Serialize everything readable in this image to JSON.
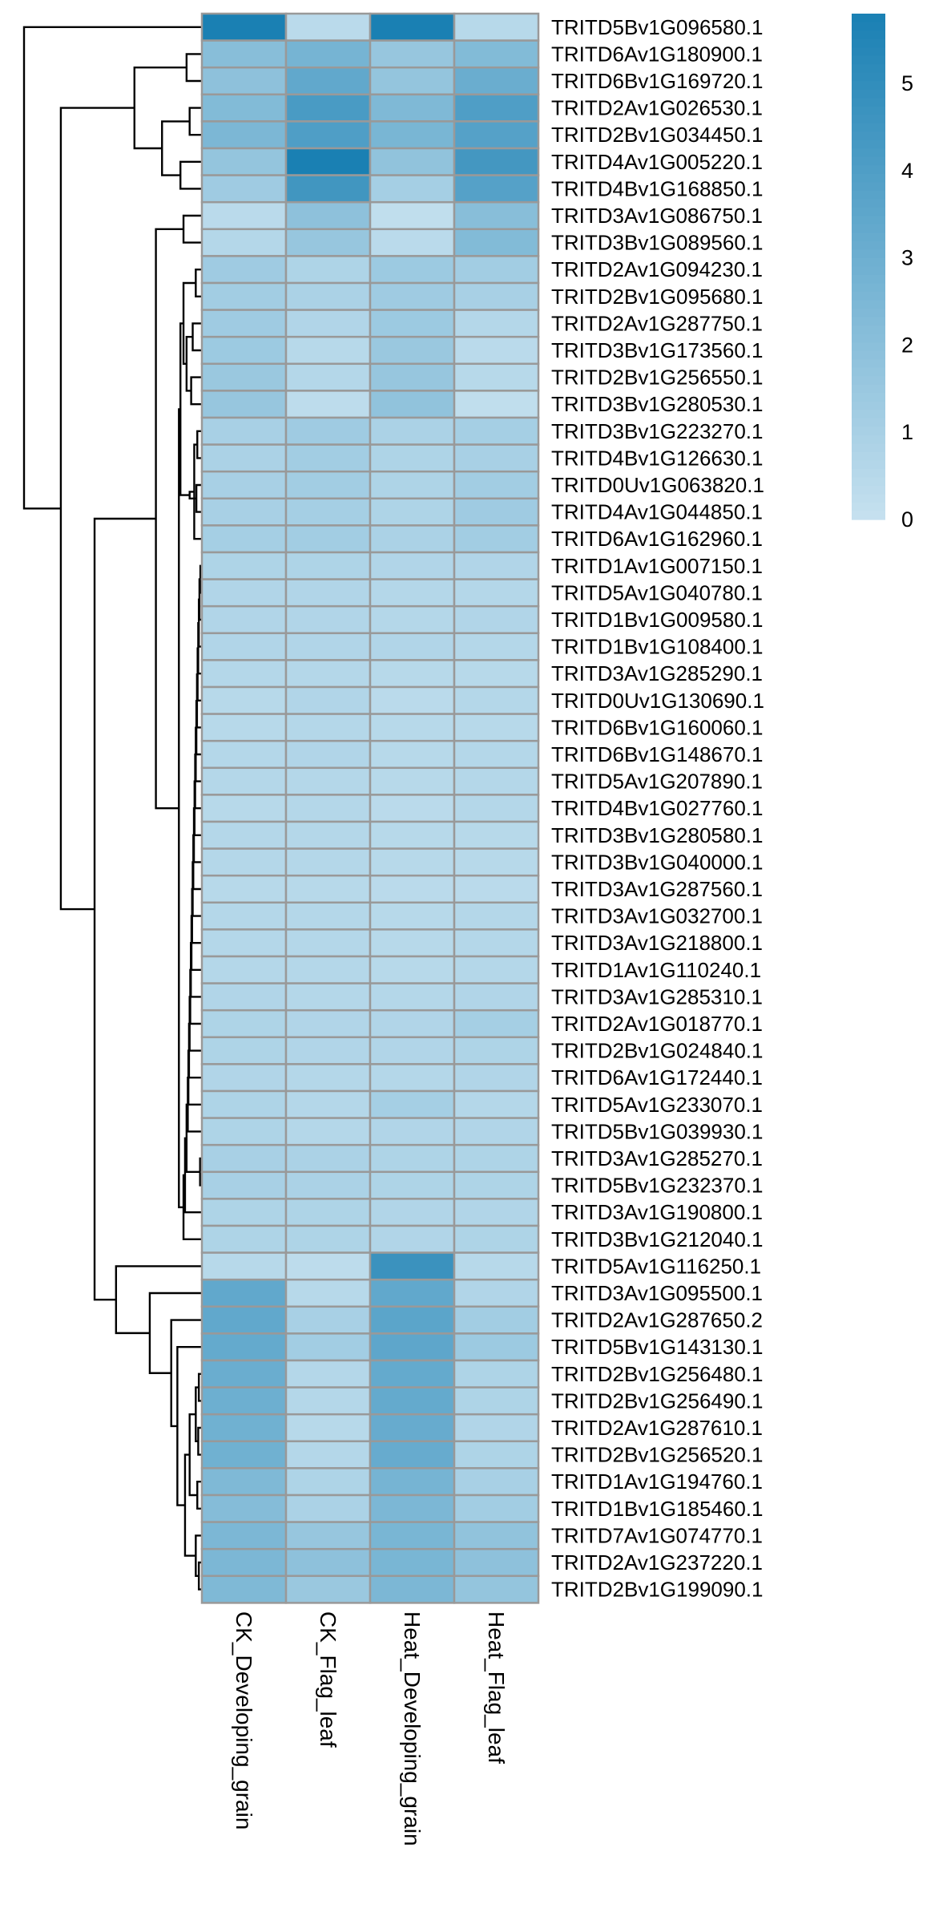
{
  "chart_data": {
    "type": "heatmap",
    "title": "",
    "xlabel": "",
    "ylabel": "",
    "columns": [
      "CK_Developing_grain",
      "CK_Flag_leaf",
      "Heat_Developing_grain",
      "Heat_Flag_leaf"
    ],
    "rows": [
      "TRITD5Bv1G096580.1",
      "TRITD6Av1G180900.1",
      "TRITD6Bv1G169720.1",
      "TRITD2Av1G026530.1",
      "TRITD2Bv1G034450.1",
      "TRITD4Av1G005220.1",
      "TRITD4Bv1G168850.1",
      "TRITD3Av1G086750.1",
      "TRITD3Bv1G089560.1",
      "TRITD2Av1G094230.1",
      "TRITD2Bv1G095680.1",
      "TRITD2Av1G287750.1",
      "TRITD3Bv1G173560.1",
      "TRITD2Bv1G256550.1",
      "TRITD3Bv1G280530.1",
      "TRITD3Bv1G223270.1",
      "TRITD4Bv1G126630.1",
      "TRITD0Uv1G063820.1",
      "TRITD4Av1G044850.1",
      "TRITD6Av1G162960.1",
      "TRITD1Av1G007150.1",
      "TRITD5Av1G040780.1",
      "TRITD1Bv1G009580.1",
      "TRITD1Bv1G108400.1",
      "TRITD3Av1G285290.1",
      "TRITD0Uv1G130690.1",
      "TRITD6Bv1G160060.1",
      "TRITD6Bv1G148670.1",
      "TRITD5Av1G207890.1",
      "TRITD4Bv1G027760.1",
      "TRITD3Bv1G280580.1",
      "TRITD3Bv1G040000.1",
      "TRITD3Av1G287560.1",
      "TRITD3Av1G032700.1",
      "TRITD3Av1G218800.1",
      "TRITD1Av1G110240.1",
      "TRITD3Av1G285310.1",
      "TRITD2Av1G018770.1",
      "TRITD2Bv1G024840.1",
      "TRITD6Av1G172440.1",
      "TRITD5Av1G233070.1",
      "TRITD5Bv1G039930.1",
      "TRITD3Av1G285270.1",
      "TRITD5Bv1G232370.1",
      "TRITD3Av1G190800.1",
      "TRITD3Bv1G212040.1",
      "TRITD5Av1G116250.1",
      "TRITD3Av1G095500.1",
      "TRITD2Av1G287650.2",
      "TRITD5Bv1G143130.1",
      "TRITD2Bv1G256480.1",
      "TRITD2Bv1G256490.1",
      "TRITD2Av1G287610.1",
      "TRITD2Bv1G256520.1",
      "TRITD1Av1G194760.1",
      "TRITD1Bv1G185460.1",
      "TRITD7Av1G074770.1",
      "TRITD2Av1G237220.1",
      "TRITD2Bv1G199090.1"
    ],
    "values": [
      [
        5.8,
        0.4,
        5.8,
        0.5
      ],
      [
        2.1,
        2.7,
        1.6,
        2.3
      ],
      [
        1.9,
        3.4,
        1.7,
        3.1
      ],
      [
        2.3,
        4.2,
        2.4,
        4.0
      ],
      [
        2.5,
        4.0,
        2.6,
        3.8
      ],
      [
        1.7,
        5.8,
        1.8,
        4.4
      ],
      [
        1.3,
        4.5,
        1.1,
        3.8
      ],
      [
        0.4,
        1.9,
        0.2,
        2.1
      ],
      [
        0.6,
        1.6,
        0.4,
        2.3
      ],
      [
        1.3,
        0.8,
        1.4,
        1.2
      ],
      [
        1.2,
        0.9,
        1.3,
        1.0
      ],
      [
        1.3,
        0.7,
        1.4,
        0.6
      ],
      [
        1.4,
        0.5,
        1.5,
        0.4
      ],
      [
        1.5,
        0.6,
        1.6,
        0.5
      ],
      [
        1.6,
        0.3,
        1.8,
        0.2
      ],
      [
        1.0,
        1.3,
        0.9,
        1.1
      ],
      [
        0.9,
        1.2,
        0.8,
        1.0
      ],
      [
        1.0,
        1.2,
        0.8,
        1.2
      ],
      [
        1.0,
        1.1,
        0.8,
        1.3
      ],
      [
        1.1,
        1.2,
        0.9,
        1.2
      ],
      [
        0.8,
        0.8,
        0.7,
        0.7
      ],
      [
        0.7,
        0.7,
        0.6,
        0.6
      ],
      [
        0.7,
        0.7,
        0.6,
        0.7
      ],
      [
        0.7,
        0.7,
        0.7,
        0.6
      ],
      [
        0.6,
        0.6,
        0.5,
        0.5
      ],
      [
        0.5,
        0.7,
        0.4,
        0.6
      ],
      [
        0.5,
        0.6,
        0.5,
        0.5
      ],
      [
        0.6,
        0.7,
        0.5,
        0.6
      ],
      [
        0.6,
        0.6,
        0.5,
        0.6
      ],
      [
        0.5,
        0.6,
        0.4,
        0.6
      ],
      [
        0.6,
        0.6,
        0.5,
        0.5
      ],
      [
        0.6,
        0.6,
        0.5,
        0.5
      ],
      [
        0.5,
        0.5,
        0.4,
        0.4
      ],
      [
        0.6,
        0.6,
        0.5,
        0.6
      ],
      [
        0.6,
        0.6,
        0.5,
        0.6
      ],
      [
        0.6,
        0.6,
        0.5,
        0.6
      ],
      [
        0.7,
        0.6,
        0.6,
        0.7
      ],
      [
        0.8,
        0.7,
        0.7,
        1.1
      ],
      [
        0.8,
        0.7,
        0.7,
        0.8
      ],
      [
        0.7,
        0.6,
        0.6,
        0.7
      ],
      [
        0.8,
        0.6,
        1.1,
        0.6
      ],
      [
        0.8,
        0.6,
        0.7,
        0.7
      ],
      [
        1.0,
        0.9,
        0.8,
        0.8
      ],
      [
        1.0,
        0.9,
        0.8,
        0.8
      ],
      [
        0.8,
        0.8,
        0.7,
        0.7
      ],
      [
        0.8,
        0.8,
        0.7,
        0.8
      ],
      [
        0.5,
        0.3,
        4.7,
        0.5
      ],
      [
        3.4,
        0.5,
        3.4,
        0.7
      ],
      [
        3.4,
        1.0,
        3.6,
        1.2
      ],
      [
        3.3,
        1.2,
        3.5,
        1.4
      ],
      [
        3.1,
        0.6,
        3.3,
        0.8
      ],
      [
        3.0,
        0.6,
        3.3,
        0.8
      ],
      [
        2.9,
        0.5,
        3.2,
        0.7
      ],
      [
        2.9,
        0.6,
        3.2,
        0.8
      ],
      [
        2.4,
        0.8,
        2.7,
        1.0
      ],
      [
        2.2,
        0.9,
        2.5,
        1.2
      ],
      [
        2.5,
        1.6,
        2.6,
        1.8
      ],
      [
        2.5,
        1.9,
        2.6,
        1.9
      ],
      [
        2.4,
        1.5,
        2.5,
        1.7
      ]
    ],
    "color_scale": {
      "min": 0,
      "max": 5.8,
      "low_color": "#c6e1ef",
      "high_color": "#1a80b3"
    },
    "legend_ticks": [
      0,
      1,
      2,
      3,
      4,
      5
    ],
    "cell_border_color": "#999999",
    "row_dendrogram": {
      "merges": [
        [
          -2,
          -3,
          0.5
        ],
        [
          -4,
          -5,
          0.4
        ],
        [
          -6,
          -7,
          0.7
        ],
        [
          2,
          3,
          1.3
        ],
        [
          1,
          4,
          2.2
        ],
        [
          -8,
          -9,
          0.6
        ],
        [
          -10,
          -11,
          0.2
        ],
        [
          -12,
          -13,
          0.3
        ],
        [
          -14,
          -15,
          0.35
        ],
        [
          8,
          9,
          0.5
        ],
        [
          7,
          10,
          0.6
        ],
        [
          -16,
          -17,
          0.15
        ],
        [
          -18,
          -19,
          0.18
        ],
        [
          12,
          -20,
          0.25
        ],
        [
          13,
          14,
          0.4
        ],
        [
          11,
          15,
          0.7
        ],
        [
          -21,
          -22,
          0.05
        ],
        [
          17,
          -23,
          0.08
        ],
        [
          18,
          -24,
          0.1
        ],
        [
          19,
          -25,
          0.12
        ],
        [
          20,
          -26,
          0.14
        ],
        [
          21,
          -27,
          0.16
        ],
        [
          22,
          -28,
          0.18
        ],
        [
          23,
          -29,
          0.2
        ],
        [
          24,
          -30,
          0.22
        ],
        [
          25,
          -31,
          0.24
        ],
        [
          26,
          -32,
          0.26
        ],
        [
          27,
          -33,
          0.28
        ],
        [
          28,
          -34,
          0.3
        ],
        [
          29,
          -35,
          0.32
        ],
        [
          30,
          -36,
          0.34
        ],
        [
          31,
          -37,
          0.36
        ],
        [
          32,
          -38,
          0.38
        ],
        [
          33,
          -39,
          0.4
        ],
        [
          34,
          -40,
          0.42
        ],
        [
          35,
          -41,
          0.44
        ],
        [
          36,
          -42,
          0.46
        ],
        [
          -43,
          -44,
          0.06
        ],
        [
          37,
          38,
          0.5
        ],
        [
          39,
          -45,
          0.55
        ],
        [
          40,
          -46,
          0.6
        ],
        [
          16,
          41,
          0.75
        ],
        [
          6,
          42,
          1.5
        ],
        [
          -51,
          -52,
          0.1
        ],
        [
          -53,
          -54,
          0.12
        ],
        [
          44,
          45,
          0.2
        ],
        [
          -55,
          -56,
          0.15
        ],
        [
          46,
          47,
          0.4
        ],
        [
          -58,
          -59,
          0.1
        ],
        [
          -57,
          49,
          0.2
        ],
        [
          48,
          50,
          0.55
        ],
        [
          -50,
          51,
          0.8
        ],
        [
          -49,
          52,
          1.0
        ],
        [
          -48,
          53,
          1.7
        ],
        [
          -47,
          54,
          2.8
        ],
        [
          43,
          55,
          3.5
        ],
        [
          5,
          56,
          4.6
        ],
        [
          -1,
          57,
          5.8
        ]
      ],
      "max_height": 5.8
    }
  }
}
